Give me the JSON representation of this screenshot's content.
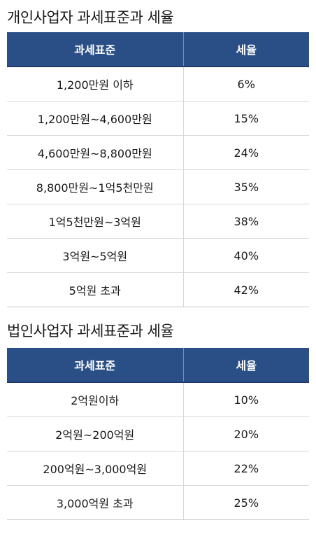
{
  "individual": {
    "title": "개인사업자 과세표준과 세율",
    "headers": {
      "bracket": "과세표준",
      "rate": "세율"
    },
    "rows": [
      {
        "bracket": "1,200만원 이하",
        "rate": "6%"
      },
      {
        "bracket": "1,200만원~4,600만원",
        "rate": "15%"
      },
      {
        "bracket": "4,600만원~8,800만원",
        "rate": "24%"
      },
      {
        "bracket": "8,800만원~1억5천만원",
        "rate": "35%"
      },
      {
        "bracket": "1억5천만원~3억원",
        "rate": "38%"
      },
      {
        "bracket": "3억원~5억원",
        "rate": "40%"
      },
      {
        "bracket": "5억원 초과",
        "rate": "42%"
      }
    ]
  },
  "corporate": {
    "title": "법인사업자 과세표준과 세율",
    "headers": {
      "bracket": "과세표준",
      "rate": "세율"
    },
    "rows": [
      {
        "bracket": "2억원이하",
        "rate": "10%"
      },
      {
        "bracket": "2억원~200억원",
        "rate": "20%"
      },
      {
        "bracket": "200억원~3,000억원",
        "rate": "22%"
      },
      {
        "bracket": "3,000억원 초과",
        "rate": "25%"
      }
    ]
  }
}
